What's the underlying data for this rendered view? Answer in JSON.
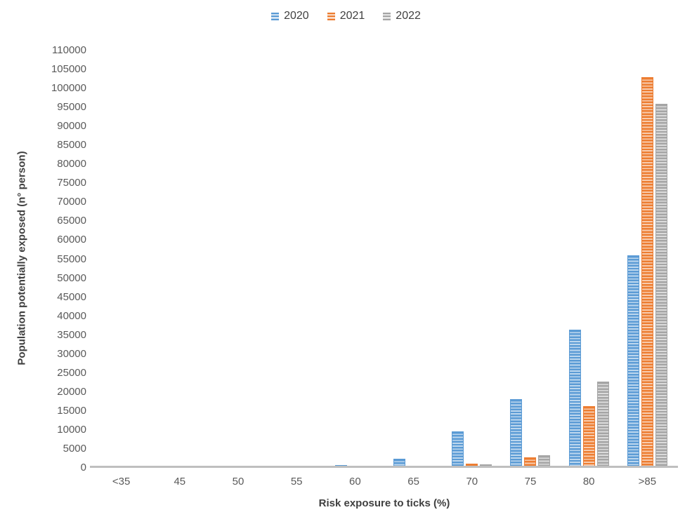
{
  "chart_data": {
    "type": "bar",
    "title": "",
    "xlabel": "Risk exposure to ticks (%)",
    "ylabel": "Population potentially exposed (n° person)",
    "categories": [
      "<35",
      "45",
      "50",
      "55",
      "60",
      "65",
      "70",
      "75",
      "80",
      ">85"
    ],
    "series": [
      {
        "name": "2020",
        "color": "#5B9BD5",
        "stripe_light": "#BDD7EE",
        "values": [
          0,
          0,
          0,
          0,
          550,
          2200,
          9400,
          17900,
          36300,
          55900
        ]
      },
      {
        "name": "2021",
        "color": "#ED7D31",
        "stripe_light": "#F8CBAD",
        "values": [
          0,
          0,
          0,
          0,
          0,
          0,
          1000,
          2500,
          16100,
          102700
        ]
      },
      {
        "name": "2022",
        "color": "#A5A5A5",
        "stripe_light": "#DBDBDB",
        "values": [
          0,
          0,
          0,
          0,
          0,
          0,
          800,
          3100,
          22500,
          95800
        ]
      }
    ],
    "ylim": [
      0,
      110000
    ],
    "ytick_step": 5000,
    "grid": false,
    "legend_position": "top",
    "bar_pattern": "horizontal-stripes"
  },
  "colors": {
    "background": "#FFFFFF",
    "axis_line": "#BFBFBF",
    "tick_label": "#595959",
    "axis_title": "#3F3F3F",
    "legend_text": "#404040"
  }
}
